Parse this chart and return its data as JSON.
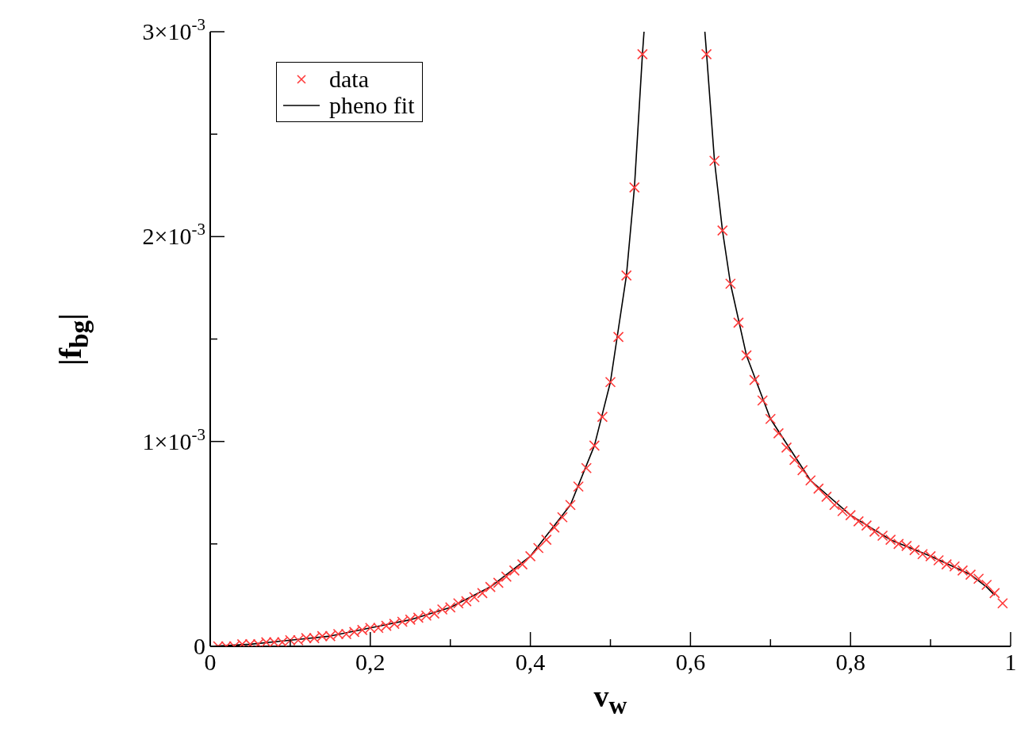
{
  "chart_data": {
    "type": "scatter",
    "xlabel": "v$_{w}$",
    "ylabel": "|f$_{bg}$|",
    "xlim": [
      0,
      1
    ],
    "ylim": [
      0,
      0.003
    ],
    "xticks": [
      0,
      {
        "value": 0.1,
        "label": null
      },
      {
        "value": 0.2,
        "label": "0,2"
      },
      {
        "value": 0.3,
        "label": null
      },
      {
        "value": 0.4,
        "label": "0,4"
      },
      {
        "value": 0.5,
        "label": null
      },
      {
        "value": 0.6,
        "label": "0,6"
      },
      {
        "value": 0.7,
        "label": null
      },
      {
        "value": 0.8,
        "label": "0,8"
      },
      {
        "value": 0.9,
        "label": null
      },
      1
    ],
    "yticks": [
      0,
      {
        "value": 0.0005,
        "label": null
      },
      {
        "value": 0.001,
        "label": "1×10$^{-3}$"
      },
      {
        "value": 0.0015,
        "label": null
      },
      {
        "value": 0.002,
        "label": "2×10$^{-3}$"
      },
      {
        "value": 0.0025,
        "label": null
      },
      {
        "value": 0.003,
        "label": "3×10$^{-3}$"
      }
    ],
    "legend": "top left",
    "series": [
      {
        "name": "data",
        "color": "#ff3b3b",
        "marker": "cross",
        "x": [
          0.01,
          0.02,
          0.03,
          0.04,
          0.05,
          0.06,
          0.07,
          0.08,
          0.09,
          0.1,
          0.11,
          0.12,
          0.13,
          0.14,
          0.15,
          0.16,
          0.17,
          0.18,
          0.19,
          0.2,
          0.21,
          0.22,
          0.23,
          0.24,
          0.25,
          0.26,
          0.27,
          0.28,
          0.29,
          0.3,
          0.31,
          0.32,
          0.33,
          0.34,
          0.35,
          0.36,
          0.37,
          0.38,
          0.39,
          0.4,
          0.41,
          0.42,
          0.43,
          0.44,
          0.45,
          0.46,
          0.47,
          0.48,
          0.49,
          0.5,
          0.51,
          0.52,
          0.53,
          0.54,
          0.62,
          0.63,
          0.64,
          0.65,
          0.66,
          0.67,
          0.68,
          0.69,
          0.7,
          0.71,
          0.72,
          0.73,
          0.74,
          0.75,
          0.76,
          0.77,
          0.78,
          0.79,
          0.8,
          0.81,
          0.82,
          0.83,
          0.84,
          0.85,
          0.86,
          0.87,
          0.88,
          0.89,
          0.9,
          0.91,
          0.92,
          0.93,
          0.94,
          0.95,
          0.96,
          0.97,
          0.98,
          0.99
        ],
        "values": [
          0,
          0,
          0,
          1e-05,
          1e-05,
          1e-05,
          2e-05,
          2e-05,
          2e-05,
          3e-05,
          3e-05,
          4e-05,
          4e-05,
          5e-05,
          5e-05,
          6e-05,
          6e-05,
          7e-05,
          8e-05,
          9e-05,
          9e-05,
          0.0001,
          0.00011,
          0.00012,
          0.00013,
          0.00014,
          0.00015,
          0.00016,
          0.00018,
          0.00019,
          0.00021,
          0.00022,
          0.00024,
          0.00026,
          0.00029,
          0.00031,
          0.00034,
          0.00037,
          0.0004,
          0.00044,
          0.00048,
          0.00052,
          0.00058,
          0.00063,
          0.00069,
          0.00078,
          0.00087,
          0.00098,
          0.00112,
          0.00129,
          0.00151,
          0.00181,
          0.00224,
          0.00289,
          0.00289,
          0.00237,
          0.00203,
          0.00177,
          0.00158,
          0.00142,
          0.0013,
          0.0012,
          0.00111,
          0.00104,
          0.00097,
          0.00091,
          0.00086,
          0.00081,
          0.00077,
          0.00073,
          0.00069,
          0.00066,
          0.00064,
          0.00061,
          0.00059,
          0.00056,
          0.00054,
          0.00052,
          0.0005,
          0.00049,
          0.00047,
          0.00045,
          0.00044,
          0.00042,
          0.0004,
          0.00039,
          0.00037,
          0.00035,
          0.00033,
          0.0003,
          0.00026,
          0.00021
        ]
      },
      {
        "name": "pheno fit",
        "type": "line",
        "color": "#000000",
        "marker": "none",
        "line_style": "solid",
        "x": [
          0,
          0.05,
          0.1,
          0.15,
          0.2,
          0.25,
          0.3,
          0.35,
          0.4,
          0.45,
          0.48,
          0.5,
          0.52,
          0.53,
          0.54,
          0.542,
          0.58,
          0.618,
          0.62,
          0.63,
          0.64,
          0.65,
          0.67,
          0.7,
          0.75,
          0.8,
          0.85,
          0.9,
          0.95,
          0.97,
          0.98
        ],
        "values": [
          0,
          1e-05,
          3e-05,
          5e-05,
          9e-05,
          0.00013,
          0.00019,
          0.00029,
          0.00044,
          0.00069,
          0.00098,
          0.00129,
          0.00181,
          0.00224,
          0.00289,
          0.003,
          null,
          0.003,
          0.0029,
          0.00237,
          0.00203,
          0.00177,
          0.00142,
          0.00111,
          0.00081,
          0.00064,
          0.00052,
          0.00044,
          0.00035,
          0.00029,
          0.00025
        ]
      }
    ]
  }
}
